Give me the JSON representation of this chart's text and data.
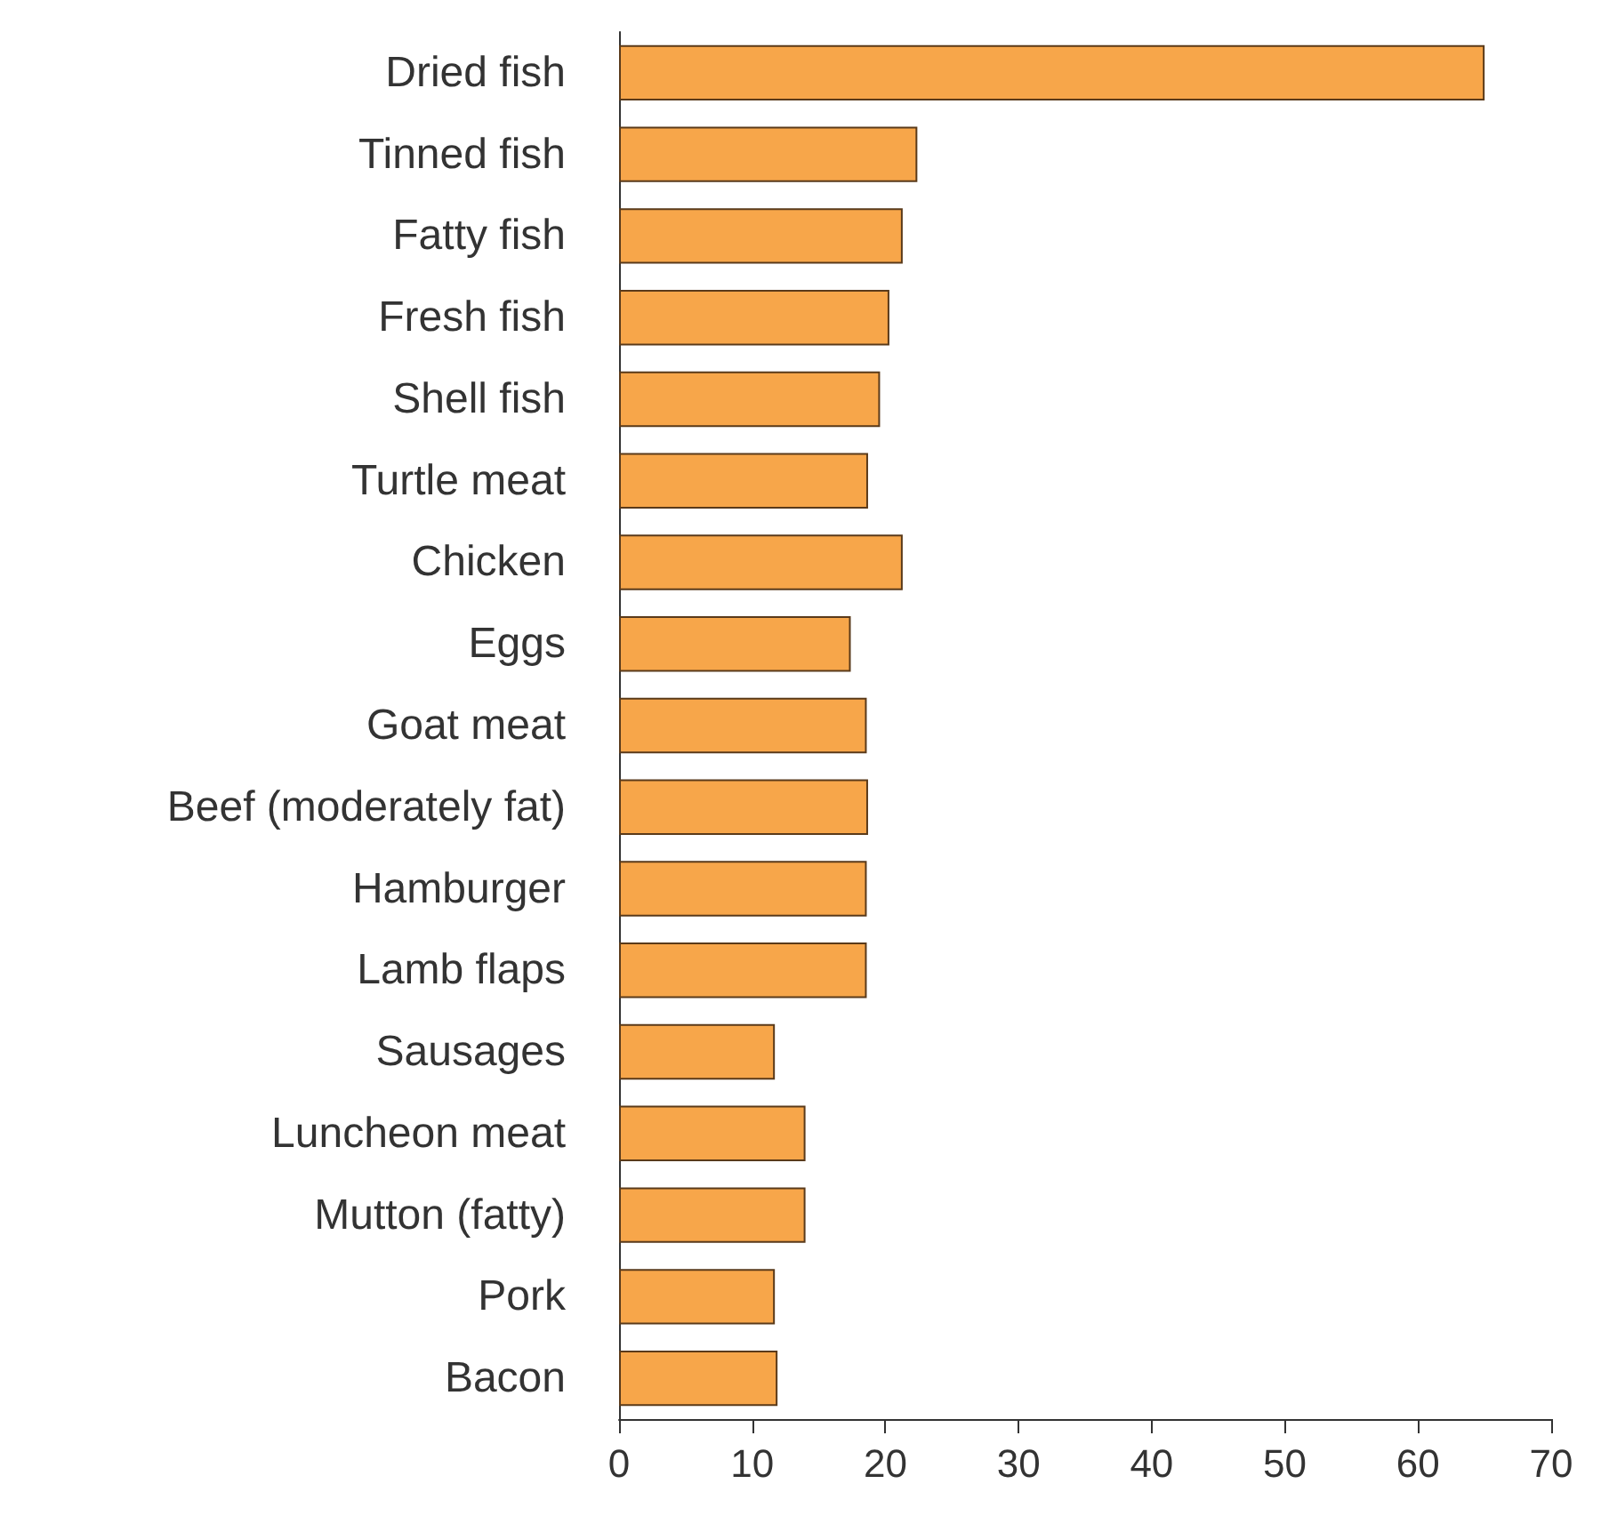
{
  "chart_data": {
    "type": "bar",
    "orientation": "horizontal",
    "categories": [
      "Dried fish",
      "Tinned fish",
      "Fatty fish",
      "Fresh fish",
      "Shell fish",
      "Turtle meat",
      "Chicken",
      "Eggs",
      "Goat meat",
      "Beef (moderately fat)",
      "Hamburger",
      "Lamb flaps",
      "Sausages",
      "Luncheon meat",
      "Mutton (fatty)",
      "Pork",
      "Bacon"
    ],
    "values": [
      65,
      22.4,
      21.3,
      20.3,
      19.6,
      18.7,
      21.3,
      17.4,
      18.6,
      18.7,
      18.6,
      18.6,
      11.7,
      14,
      14,
      11.7,
      11.9
    ],
    "color": "#f7a64a",
    "xlim": [
      0,
      70
    ],
    "xticks": [
      0,
      10,
      20,
      30,
      40,
      50,
      60,
      70
    ],
    "grid": false
  }
}
